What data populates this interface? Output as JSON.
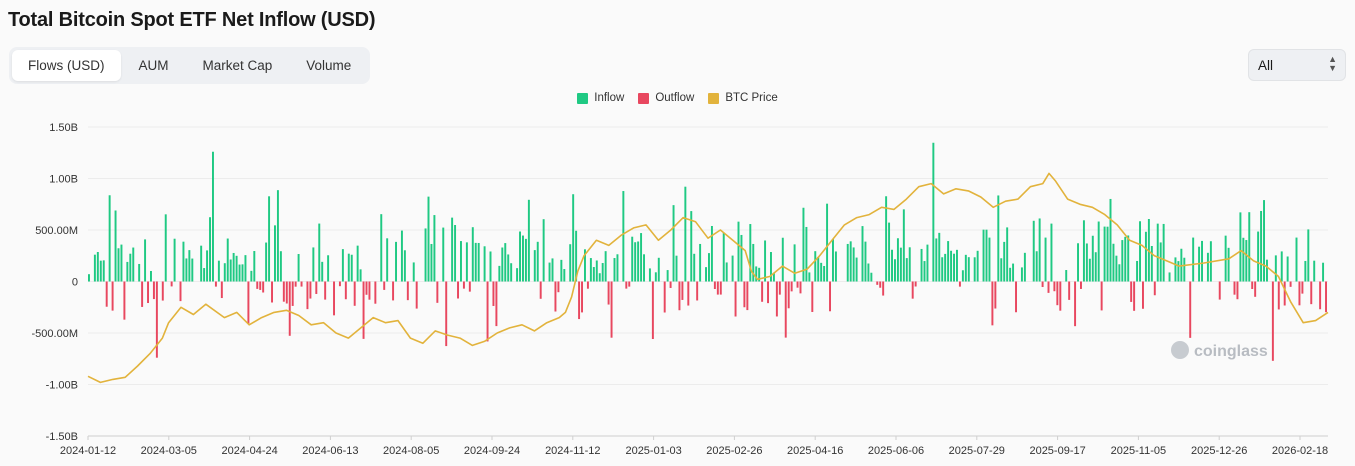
{
  "title": "Total Bitcoin Spot ETF Net Inflow (USD)",
  "tabs": [
    {
      "label": "Flows (USD)",
      "active": true
    },
    {
      "label": "AUM",
      "active": false
    },
    {
      "label": "Market Cap",
      "active": false
    },
    {
      "label": "Volume",
      "active": false
    }
  ],
  "range_select": {
    "value": "All"
  },
  "watermark": "coinglass",
  "colors": {
    "inflow": "#1fc983",
    "outflow": "#e8475f",
    "price": "#e2b33c",
    "grid": "#ececec"
  },
  "chart_data": {
    "type": "bar",
    "title": "Total Bitcoin Spot ETF Net Inflow (USD)",
    "legend": {
      "position": "top-center",
      "entries": [
        "Inflow",
        "Outflow",
        "BTC Price"
      ]
    },
    "grid": true,
    "ylim": [
      -1.5,
      1.5
    ],
    "y_unit": "B USD",
    "y_ticks": [
      {
        "value": 1.5,
        "label": "1.50B"
      },
      {
        "value": 1.0,
        "label": "1.00B"
      },
      {
        "value": 0.5,
        "label": "500.00M"
      },
      {
        "value": 0,
        "label": "0"
      },
      {
        "value": -0.5,
        "label": "-500.00M"
      },
      {
        "value": -1.0,
        "label": "-1.00B"
      },
      {
        "value": -1.5,
        "label": "-1.50B"
      }
    ],
    "x_tick_labels": [
      "2024-01-12",
      "2024-03-05",
      "2024-04-24",
      "2024-06-13",
      "2024-08-05",
      "2024-09-24",
      "2024-11-12",
      "2025-01-03",
      "2025-02-26",
      "2025-04-16",
      "2025-06-06",
      "2025-07-29",
      "2025-09-17",
      "2025-11-05",
      "2025-12-26",
      "2026-02-18"
    ],
    "x_range": [
      "2024-01-12",
      "2026-02-18"
    ],
    "series": [
      {
        "name": "Inflow",
        "kind": "bar",
        "date_sample": "2024-01-12 to 2026-02-18",
        "values_billion_approx": [
          0.2,
          0.45,
          0.1,
          0.3,
          0.6,
          0.5,
          0.4,
          0.65,
          0.55,
          0.4,
          1.04,
          0.5,
          0.3,
          0.6,
          0.55,
          0.4,
          0.3,
          0.62,
          0.35,
          0.25,
          0.45,
          0.3,
          0.55,
          0.35,
          0.45,
          0.2,
          0.3,
          0.58,
          0.4,
          0.3,
          0.2,
          0.35,
          0.45,
          0.4,
          0.3,
          0.25,
          0.5,
          0.4,
          0.2,
          0.15,
          0.3,
          0.6,
          0.8,
          1.0,
          0.9,
          0.55,
          0.7,
          0.9,
          0.5,
          1.0,
          1.35,
          0.6,
          0.8,
          0.55,
          0.7,
          0.4,
          0.6,
          0.5,
          0.9,
          0.7,
          1.0,
          0.9,
          0.6,
          0.8,
          0.5,
          0.35,
          0.6,
          0.9,
          0.8,
          0.7,
          0.5,
          0.6,
          1.0,
          0.9,
          0.4,
          0.6,
          0.8,
          0.7,
          0.5,
          0.3,
          0.45,
          0.6,
          0.9,
          1.1,
          0.8,
          0.6,
          1.0,
          0.9,
          0.6,
          0.5,
          0.55,
          0.4,
          0.3,
          0.5,
          0.9,
          0.8,
          0.7,
          0.6,
          0.5,
          0.4,
          0.7,
          0.6,
          0.8,
          1.18,
          1.0,
          0.7,
          0.5,
          0.6,
          0.9,
          0.4,
          0.3,
          0.5,
          0.3,
          0.2,
          0.35,
          0.6,
          0.5,
          0.3,
          0.4,
          0.3,
          0.2,
          0.25
        ]
      },
      {
        "name": "Outflow",
        "kind": "bar",
        "values_billion_approx": [
          -0.1,
          -0.15,
          -0.12,
          -0.2,
          -0.1,
          -0.08,
          -0.55,
          -0.25,
          -0.15,
          -0.2,
          -0.1,
          -0.3,
          -0.2,
          -0.15,
          -0.1,
          -0.2,
          -0.25,
          -0.3,
          -0.2,
          -0.4,
          -0.3,
          -0.2,
          -0.15,
          -0.1,
          -0.2,
          -0.2,
          -0.18,
          -0.5,
          -0.65,
          -0.45,
          -0.3,
          -0.45,
          -1.0,
          -0.6,
          -0.4,
          -0.3,
          -0.2,
          -0.15,
          -0.1,
          -0.2,
          -0.3,
          -0.25,
          -0.15,
          -0.2,
          -0.5,
          -0.8,
          -0.55,
          -0.5,
          -0.4,
          -0.3,
          -0.2,
          -0.25,
          -0.3,
          -0.2,
          -0.15,
          -0.3,
          -0.55,
          -0.85,
          -0.9,
          -0.6,
          -0.55,
          -0.45,
          -0.7,
          -0.5,
          -0.3,
          -0.4,
          -0.6,
          -0.5,
          -0.3,
          -0.2
        ]
      },
      {
        "name": "BTC Price",
        "kind": "line",
        "axis": "secondary (unlabeled)"
      }
    ]
  }
}
